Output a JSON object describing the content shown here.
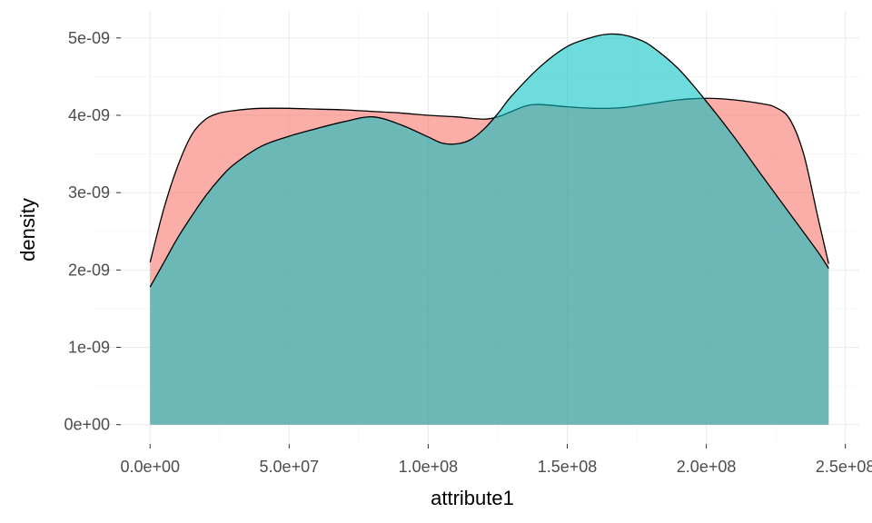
{
  "chart_data": {
    "type": "area",
    "title": "",
    "xlabel": "attribute1",
    "ylabel": "density",
    "xlim": [
      -20000000,
      255000000
    ],
    "ylim": [
      -2.5e-10,
      5.35e-09
    ],
    "x_ticks": [
      0,
      50000000,
      100000000,
      150000000,
      200000000,
      250000000
    ],
    "x_tick_labels": [
      "0.0e+00",
      "5.0e+07",
      "1.0e+08",
      "1.5e+08",
      "2.0e+08",
      "2.5e+08"
    ],
    "y_ticks": [
      0,
      1e-09,
      2e-09,
      3e-09,
      4e-09,
      5e-09
    ],
    "y_tick_labels": [
      "0e+00",
      "1e-09",
      "2e-09",
      "3e-09",
      "4e-09",
      "5e-09"
    ],
    "grid": true,
    "legend": "none",
    "series": [
      {
        "color": "#F8766D",
        "opacity": 0.6,
        "x": [
          0,
          5000000,
          10000000,
          15000000,
          20000000,
          25000000,
          30000000,
          35000000,
          40000000,
          50000000,
          60000000,
          70000000,
          80000000,
          90000000,
          100000000,
          110000000,
          120000000,
          125000000,
          130000000,
          135000000,
          140000000,
          150000000,
          160000000,
          170000000,
          180000000,
          190000000,
          200000000,
          210000000,
          220000000,
          225000000,
          230000000,
          235000000,
          240000000,
          244000000
        ],
        "y": [
          2.1e-09,
          2.8e-09,
          3.35e-09,
          3.75e-09,
          3.95e-09,
          4.03e-09,
          4.06e-09,
          4.08e-09,
          4.09e-09,
          4.09e-09,
          4.08e-09,
          4.07e-09,
          4.05e-09,
          4.03e-09,
          4e-09,
          3.98e-09,
          3.95e-09,
          3.98e-09,
          4.05e-09,
          4.12e-09,
          4.14e-09,
          4.11e-09,
          4.09e-09,
          4.1e-09,
          4.15e-09,
          4.2e-09,
          4.22e-09,
          4.2e-09,
          4.15e-09,
          4.1e-09,
          3.95e-09,
          3.5e-09,
          2.7e-09,
          2.08e-09
        ]
      },
      {
        "color": "#00BFC4",
        "opacity": 0.57,
        "x": [
          0,
          5000000,
          10000000,
          15000000,
          20000000,
          25000000,
          30000000,
          40000000,
          50000000,
          60000000,
          70000000,
          80000000,
          90000000,
          100000000,
          105000000,
          110000000,
          115000000,
          120000000,
          125000000,
          130000000,
          140000000,
          150000000,
          160000000,
          165000000,
          170000000,
          175000000,
          180000000,
          190000000,
          200000000,
          210000000,
          220000000,
          230000000,
          240000000,
          244000000
        ],
        "y": [
          1.78e-09,
          2.1e-09,
          2.42e-09,
          2.7e-09,
          2.96e-09,
          3.18e-09,
          3.36e-09,
          3.6e-09,
          3.73e-09,
          3.83e-09,
          3.92e-09,
          3.98e-09,
          3.88e-09,
          3.72e-09,
          3.64e-09,
          3.63e-09,
          3.68e-09,
          3.82e-09,
          4.02e-09,
          4.25e-09,
          4.62e-09,
          4.89e-09,
          5.02e-09,
          5.05e-09,
          5.04e-09,
          4.99e-09,
          4.9e-09,
          4.6e-09,
          4.18e-09,
          3.72e-09,
          3.22e-09,
          2.73e-09,
          2.24e-09,
          2.02e-09
        ]
      }
    ]
  }
}
